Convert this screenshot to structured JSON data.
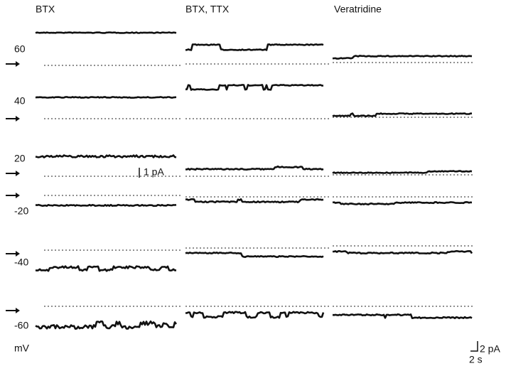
{
  "columns": [
    "BTX",
    "BTX, TTX",
    "Veratridine"
  ],
  "rows": [
    {
      "label": "60"
    },
    {
      "label": "40"
    },
    {
      "label": "20"
    },
    {
      "label": "-20"
    },
    {
      "label": "-40"
    },
    {
      "label": "-60"
    }
  ],
  "unit": "mV",
  "scale_bars": {
    "inset": "1 pA",
    "current": "2 pA",
    "time": "2 s"
  }
}
